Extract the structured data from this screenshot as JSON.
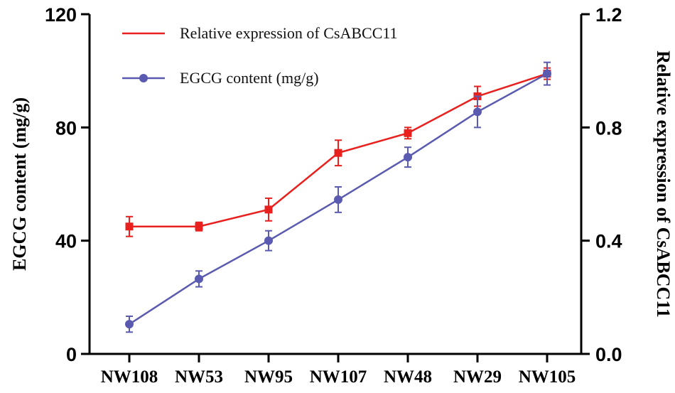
{
  "chart_data": {
    "type": "line",
    "categories": [
      "NW108",
      "NW53",
      "NW95",
      "NW107",
      "NW48",
      "NW29",
      "NW105"
    ],
    "y_left": {
      "label": "EGCG content (mg/g)",
      "range": [
        0,
        120
      ],
      "ticks": [
        0,
        40,
        80,
        120
      ],
      "tick_labels": [
        "0",
        "40",
        "80",
        "120"
      ]
    },
    "y_right": {
      "label": "Relative expression of CsABCC11",
      "range": [
        0,
        1.2
      ],
      "ticks": [
        0,
        0.4,
        0.8,
        1.2
      ],
      "tick_labels": [
        "0.0",
        "0.4",
        "0.8",
        "1.2"
      ]
    },
    "series": [
      {
        "name": "Relative expression of CsABCC11",
        "axis": "right",
        "marker": "square",
        "color": "#e8201e",
        "values": [
          0.45,
          0.45,
          0.51,
          0.71,
          0.78,
          0.91,
          0.99
        ],
        "errors": [
          0.035,
          0.015,
          0.04,
          0.045,
          0.02,
          0.035,
          0.02
        ]
      },
      {
        "name": "EGCG content (mg/g)",
        "axis": "left",
        "marker": "circle",
        "color": "#5a5bb0",
        "values": [
          10.5,
          26.5,
          40,
          54.5,
          69.5,
          85.5,
          99
        ],
        "errors": [
          2.8,
          2.8,
          3.5,
          4.5,
          3.5,
          5.5,
          4
        ]
      }
    ],
    "legend_position": "top-left",
    "grid": false
  }
}
